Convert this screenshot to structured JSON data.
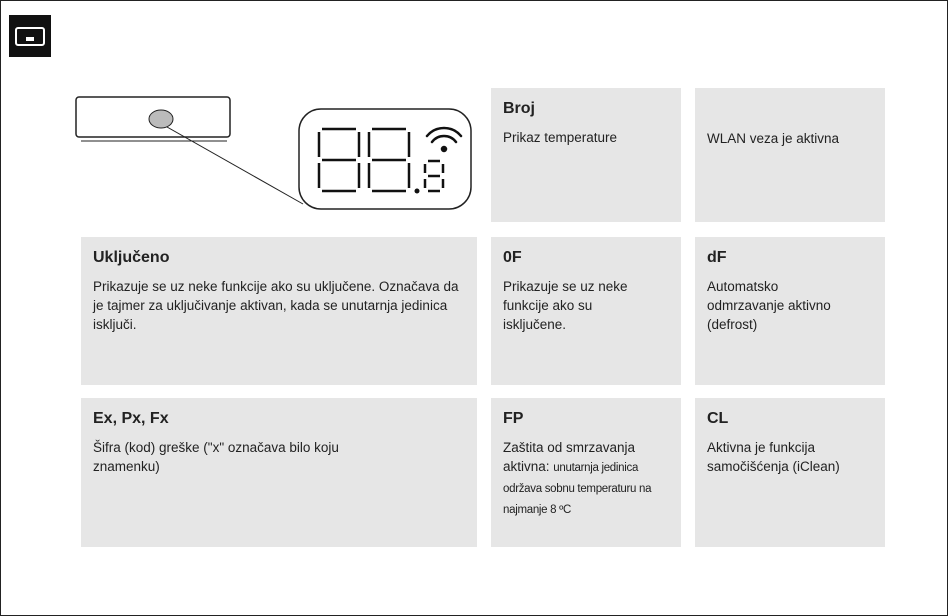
{
  "cells": [
    {
      "title": "Broj",
      "text": "Prikaz temperature"
    },
    {
      "text": "WLAN veza je aktivna"
    },
    {
      "title": "Uključeno",
      "text": "Prikazuje se uz neke funkcije ako su uključene. Označava da je tajmer  za uključivanje aktivan, kada se unutarnja jedinica isključi."
    },
    {
      "title": "0F",
      "text": "Prikazuje se uz neke funkcije ako su isključene."
    },
    {
      "title": "dF",
      "text": "Automatsko odmrzavanje aktivno (defrost)"
    },
    {
      "title": "Ex, Px, Fx",
      "text": "Šifra (kod) greške (\"x\" označava bilo koju znamenku)"
    },
    {
      "title": "FP",
      "text": "Zaštita od smrzavanja aktivna:",
      "note": "unutarnja jedinica održava sobnu temperaturu na najmanje 8 ºC"
    },
    {
      "title": "CL",
      "text": "Aktivna je funkcija samočišćenja (iClean)"
    }
  ]
}
